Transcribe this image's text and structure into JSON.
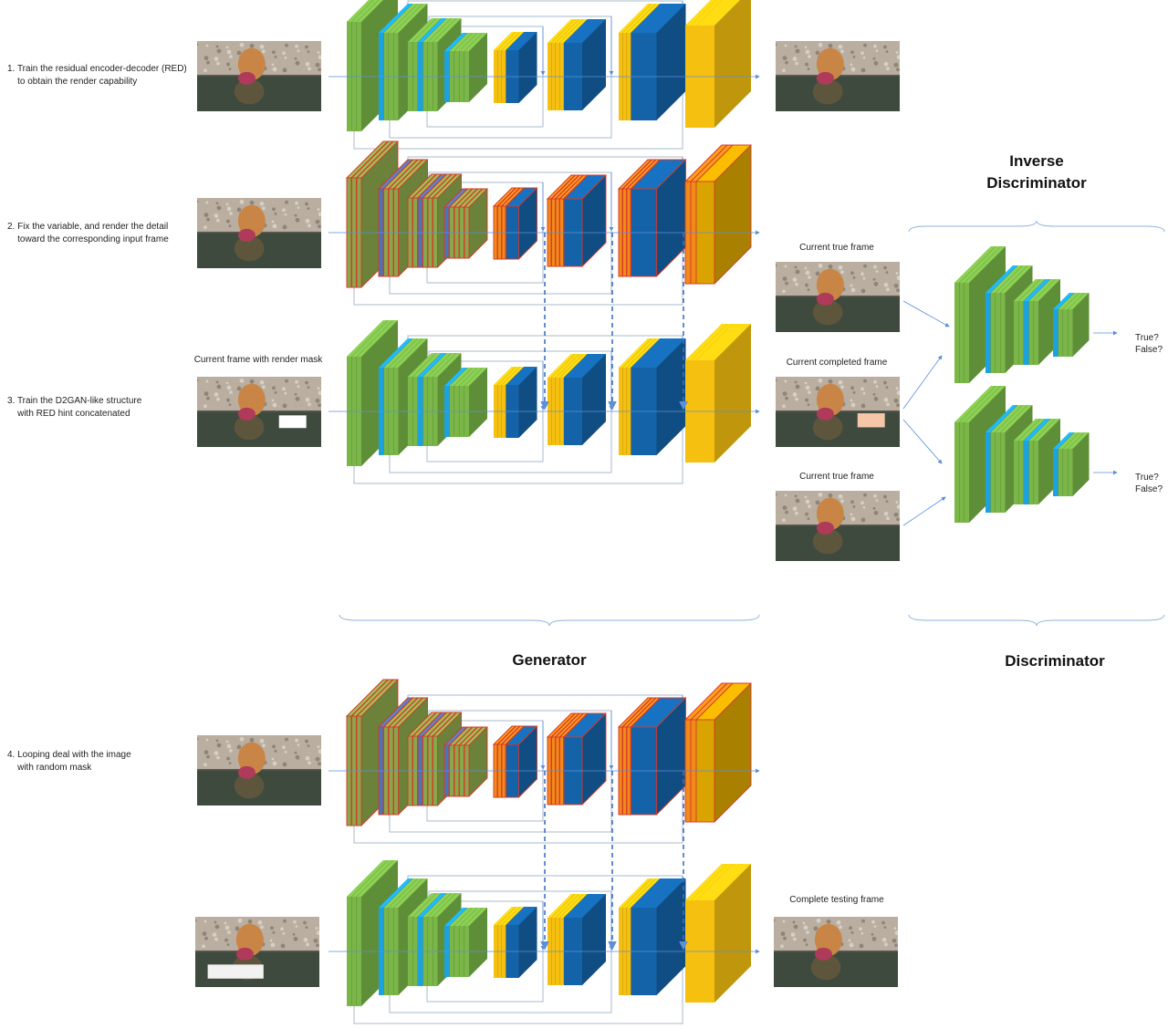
{
  "steps": [
    {
      "line1": "1. Train the residual encoder-decoder (RED)",
      "line2": "    to obtain the render capability"
    },
    {
      "line1": "2. Fix the variable, and render the detail",
      "line2": "    toward the corresponding input frame"
    },
    {
      "line1": "3. Train the D2GAN-like structure",
      "line2": "    with RED hint concatenated"
    },
    {
      "line1": "4. Looping deal with the image",
      "line2": "    with random mask"
    }
  ],
  "captions": {
    "masked_frame": "Current frame with render mask",
    "true_frame_top": "Current true frame",
    "completed_frame": "Current completed frame",
    "true_frame_bottom": "Current true frame",
    "complete_testing": "Complete testing frame"
  },
  "titles": {
    "inverse_discriminator": "Inverse\nDiscriminator",
    "generator": "Generator",
    "discriminator": "Discriminator"
  },
  "outputs": {
    "disc_top": "True?\nFalse?",
    "disc_bottom": "True?\nFalse?"
  },
  "colors": {
    "green": "#7ab648",
    "green_side": "#5e9a2e",
    "cyan": "#1aa3e0",
    "blue": "#1463a8",
    "yellow": "#f5c010",
    "yellow_dark": "#d9a400",
    "orange": "#f28a1a",
    "edge_red": "#d43a2a",
    "line_blue": "#5b8fd6",
    "skip_gray": "#a9b8cc"
  }
}
